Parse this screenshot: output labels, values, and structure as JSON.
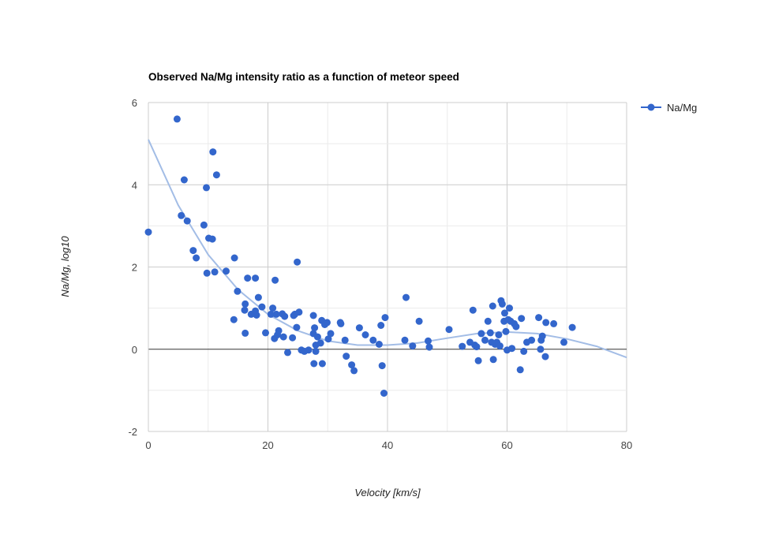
{
  "chart_data": {
    "type": "scatter",
    "title": "Observed Na/Mg intensity ratio as a function of meteor speed",
    "xlabel": "Velocity [km/s]",
    "ylabel": "Na/Mg, log10",
    "xlim": [
      0,
      80
    ],
    "ylim": [
      -2,
      6
    ],
    "xticks": [
      "0",
      "20",
      "40",
      "60",
      "80"
    ],
    "yticks": [
      "-2",
      "0",
      "2",
      "4",
      "6"
    ],
    "grid": true,
    "legend": "right",
    "colors": {
      "points": "#3366cc",
      "trendline": "#a3bde6"
    },
    "series": [
      {
        "name": "Na/Mg",
        "points": [
          [
            0.0,
            2.85
          ],
          [
            4.8,
            5.6
          ],
          [
            5.5,
            3.25
          ],
          [
            6.0,
            4.12
          ],
          [
            6.5,
            3.12
          ],
          [
            7.5,
            2.4
          ],
          [
            8.0,
            2.22
          ],
          [
            9.3,
            3.02
          ],
          [
            9.7,
            3.93
          ],
          [
            9.8,
            1.85
          ],
          [
            10.1,
            2.7
          ],
          [
            10.7,
            2.68
          ],
          [
            10.8,
            4.8
          ],
          [
            11.1,
            1.88
          ],
          [
            11.4,
            4.24
          ],
          [
            13.0,
            1.9
          ],
          [
            14.3,
            0.72
          ],
          [
            14.4,
            2.22
          ],
          [
            14.9,
            1.41
          ],
          [
            16.1,
            0.95
          ],
          [
            16.2,
            1.1
          ],
          [
            16.2,
            0.39
          ],
          [
            16.6,
            1.73
          ],
          [
            17.2,
            0.85
          ],
          [
            17.9,
            1.73
          ],
          [
            17.9,
            0.93
          ],
          [
            18.1,
            0.83
          ],
          [
            18.4,
            1.26
          ],
          [
            19.0,
            1.03
          ],
          [
            19.6,
            0.4
          ],
          [
            20.5,
            0.85
          ],
          [
            20.8,
            1.0
          ],
          [
            21.1,
            0.26
          ],
          [
            21.2,
            1.68
          ],
          [
            21.4,
            0.85
          ],
          [
            21.6,
            0.35
          ],
          [
            21.8,
            0.45
          ],
          [
            22.4,
            0.86
          ],
          [
            22.6,
            0.3
          ],
          [
            22.8,
            0.8
          ],
          [
            23.3,
            -0.08
          ],
          [
            24.1,
            0.28
          ],
          [
            24.3,
            0.82
          ],
          [
            24.5,
            0.85
          ],
          [
            24.8,
            0.53
          ],
          [
            24.9,
            2.12
          ],
          [
            25.2,
            0.9
          ],
          [
            25.6,
            -0.02
          ],
          [
            26.1,
            -0.05
          ],
          [
            26.8,
            -0.02
          ],
          [
            27.6,
            0.82
          ],
          [
            27.6,
            0.38
          ],
          [
            27.7,
            -0.35
          ],
          [
            27.8,
            0.52
          ],
          [
            28.0,
            -0.05
          ],
          [
            28.0,
            0.1
          ],
          [
            28.3,
            0.3
          ],
          [
            28.8,
            0.15
          ],
          [
            29.0,
            0.7
          ],
          [
            29.1,
            -0.35
          ],
          [
            29.5,
            0.6
          ],
          [
            29.9,
            0.65
          ],
          [
            30.1,
            0.25
          ],
          [
            30.5,
            0.38
          ],
          [
            32.1,
            0.65
          ],
          [
            32.2,
            0.62
          ],
          [
            32.9,
            0.22
          ],
          [
            33.1,
            -0.17
          ],
          [
            34.0,
            -0.38
          ],
          [
            34.4,
            -0.52
          ],
          [
            35.3,
            0.52
          ],
          [
            36.3,
            0.35
          ],
          [
            37.6,
            0.22
          ],
          [
            38.6,
            0.12
          ],
          [
            38.9,
            0.58
          ],
          [
            39.1,
            -0.4
          ],
          [
            39.4,
            -1.07
          ],
          [
            39.6,
            0.77
          ],
          [
            42.9,
            0.22
          ],
          [
            43.1,
            1.26
          ],
          [
            44.2,
            0.08
          ],
          [
            45.3,
            0.68
          ],
          [
            46.8,
            0.2
          ],
          [
            47.0,
            0.05
          ],
          [
            50.3,
            0.48
          ],
          [
            52.5,
            0.07
          ],
          [
            53.8,
            0.17
          ],
          [
            54.3,
            0.95
          ],
          [
            54.6,
            0.1
          ],
          [
            54.9,
            0.06
          ],
          [
            55.2,
            -0.28
          ],
          [
            55.7,
            0.38
          ],
          [
            56.3,
            0.22
          ],
          [
            56.8,
            0.68
          ],
          [
            57.2,
            0.4
          ],
          [
            57.4,
            0.17
          ],
          [
            57.6,
            1.05
          ],
          [
            57.7,
            -0.25
          ],
          [
            58.0,
            0.12
          ],
          [
            58.3,
            0.17
          ],
          [
            58.6,
            0.35
          ],
          [
            58.8,
            0.08
          ],
          [
            59.0,
            1.18
          ],
          [
            59.2,
            1.1
          ],
          [
            59.5,
            0.68
          ],
          [
            59.6,
            0.88
          ],
          [
            59.8,
            0.43
          ],
          [
            60.0,
            -0.02
          ],
          [
            60.2,
            0.72
          ],
          [
            60.4,
            1.0
          ],
          [
            60.6,
            0.68
          ],
          [
            60.8,
            0.02
          ],
          [
            61.2,
            0.62
          ],
          [
            61.5,
            0.55
          ],
          [
            62.2,
            -0.5
          ],
          [
            62.4,
            0.75
          ],
          [
            62.8,
            -0.05
          ],
          [
            63.3,
            0.17
          ],
          [
            64.1,
            0.22
          ],
          [
            65.3,
            0.77
          ],
          [
            65.6,
            0.0
          ],
          [
            65.7,
            0.22
          ],
          [
            65.9,
            0.32
          ],
          [
            66.4,
            -0.18
          ],
          [
            66.5,
            0.65
          ],
          [
            67.8,
            0.62
          ],
          [
            69.5,
            0.17
          ],
          [
            70.9,
            0.53
          ]
        ]
      }
    ],
    "trendline": {
      "type": "polynomial",
      "x": [
        0,
        5,
        10,
        15,
        20,
        25,
        30,
        35,
        40,
        45,
        50,
        55,
        60,
        65,
        70,
        75,
        80
      ],
      "y": [
        5.1,
        3.5,
        2.3,
        1.45,
        0.85,
        0.45,
        0.2,
        0.1,
        0.1,
        0.15,
        0.27,
        0.38,
        0.42,
        0.38,
        0.25,
        0.07,
        -0.2
      ]
    }
  }
}
